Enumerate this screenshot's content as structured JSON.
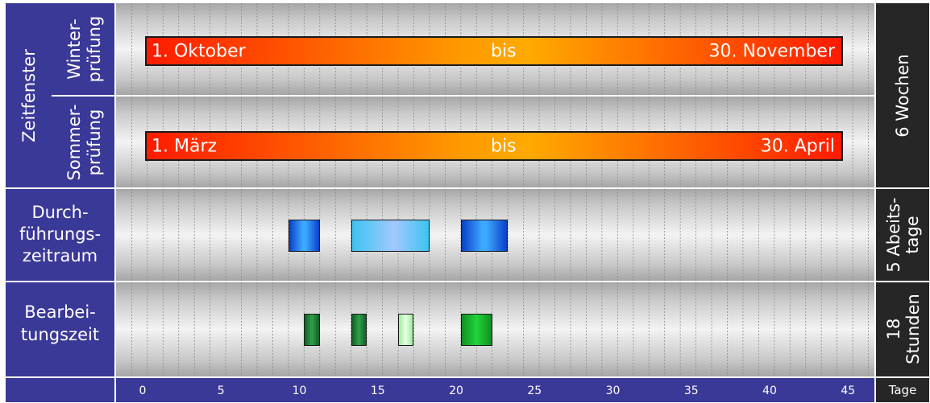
{
  "labels": {
    "zeitfenster": "Zeitfenster",
    "winter": [
      "Winter-",
      "prüfung"
    ],
    "sommer": [
      "Sommer-",
      "prüfung"
    ],
    "durchfuehrung": [
      "Durch-",
      "führungs-",
      "zeitraum"
    ],
    "bearbeitung": [
      "Bearbei-",
      "tungszeit"
    ]
  },
  "right_labels": {
    "wochen": "6 Wochen",
    "abeitstage": [
      "5 Abeits-",
      "tage"
    ],
    "stunden": [
      "18",
      "Stunden"
    ],
    "tage": "Tage"
  },
  "bars": {
    "winter": {
      "start": "1. Oktober",
      "middle": "bis",
      "end": "30. November"
    },
    "sommer": {
      "start": "1. März",
      "middle": "bis",
      "end": "30. April"
    }
  },
  "axis_ticks": [
    0,
    5,
    10,
    15,
    20,
    25,
    30,
    35,
    40,
    45
  ],
  "durchfuehrung_blocks": [
    {
      "from": 9.3,
      "to": 11.3,
      "style": "edge"
    },
    {
      "from": 13.3,
      "to": 18.3,
      "style": "light"
    },
    {
      "from": 20.3,
      "to": 23.3,
      "style": "edge"
    }
  ],
  "bearbeitung_blocks": [
    {
      "from": 10.3,
      "to": 11.3,
      "style": "dark"
    },
    {
      "from": 13.3,
      "to": 14.3,
      "style": "dark"
    },
    {
      "from": 16.3,
      "to": 17.3,
      "style": "light"
    },
    {
      "from": 20.3,
      "to": 22.3,
      "style": "mid"
    }
  ],
  "colors": {
    "label_bg": "#3b3997",
    "right_bg": "#262626",
    "bar_red": "#ff1a00",
    "bar_orange": "#ffa500"
  }
}
